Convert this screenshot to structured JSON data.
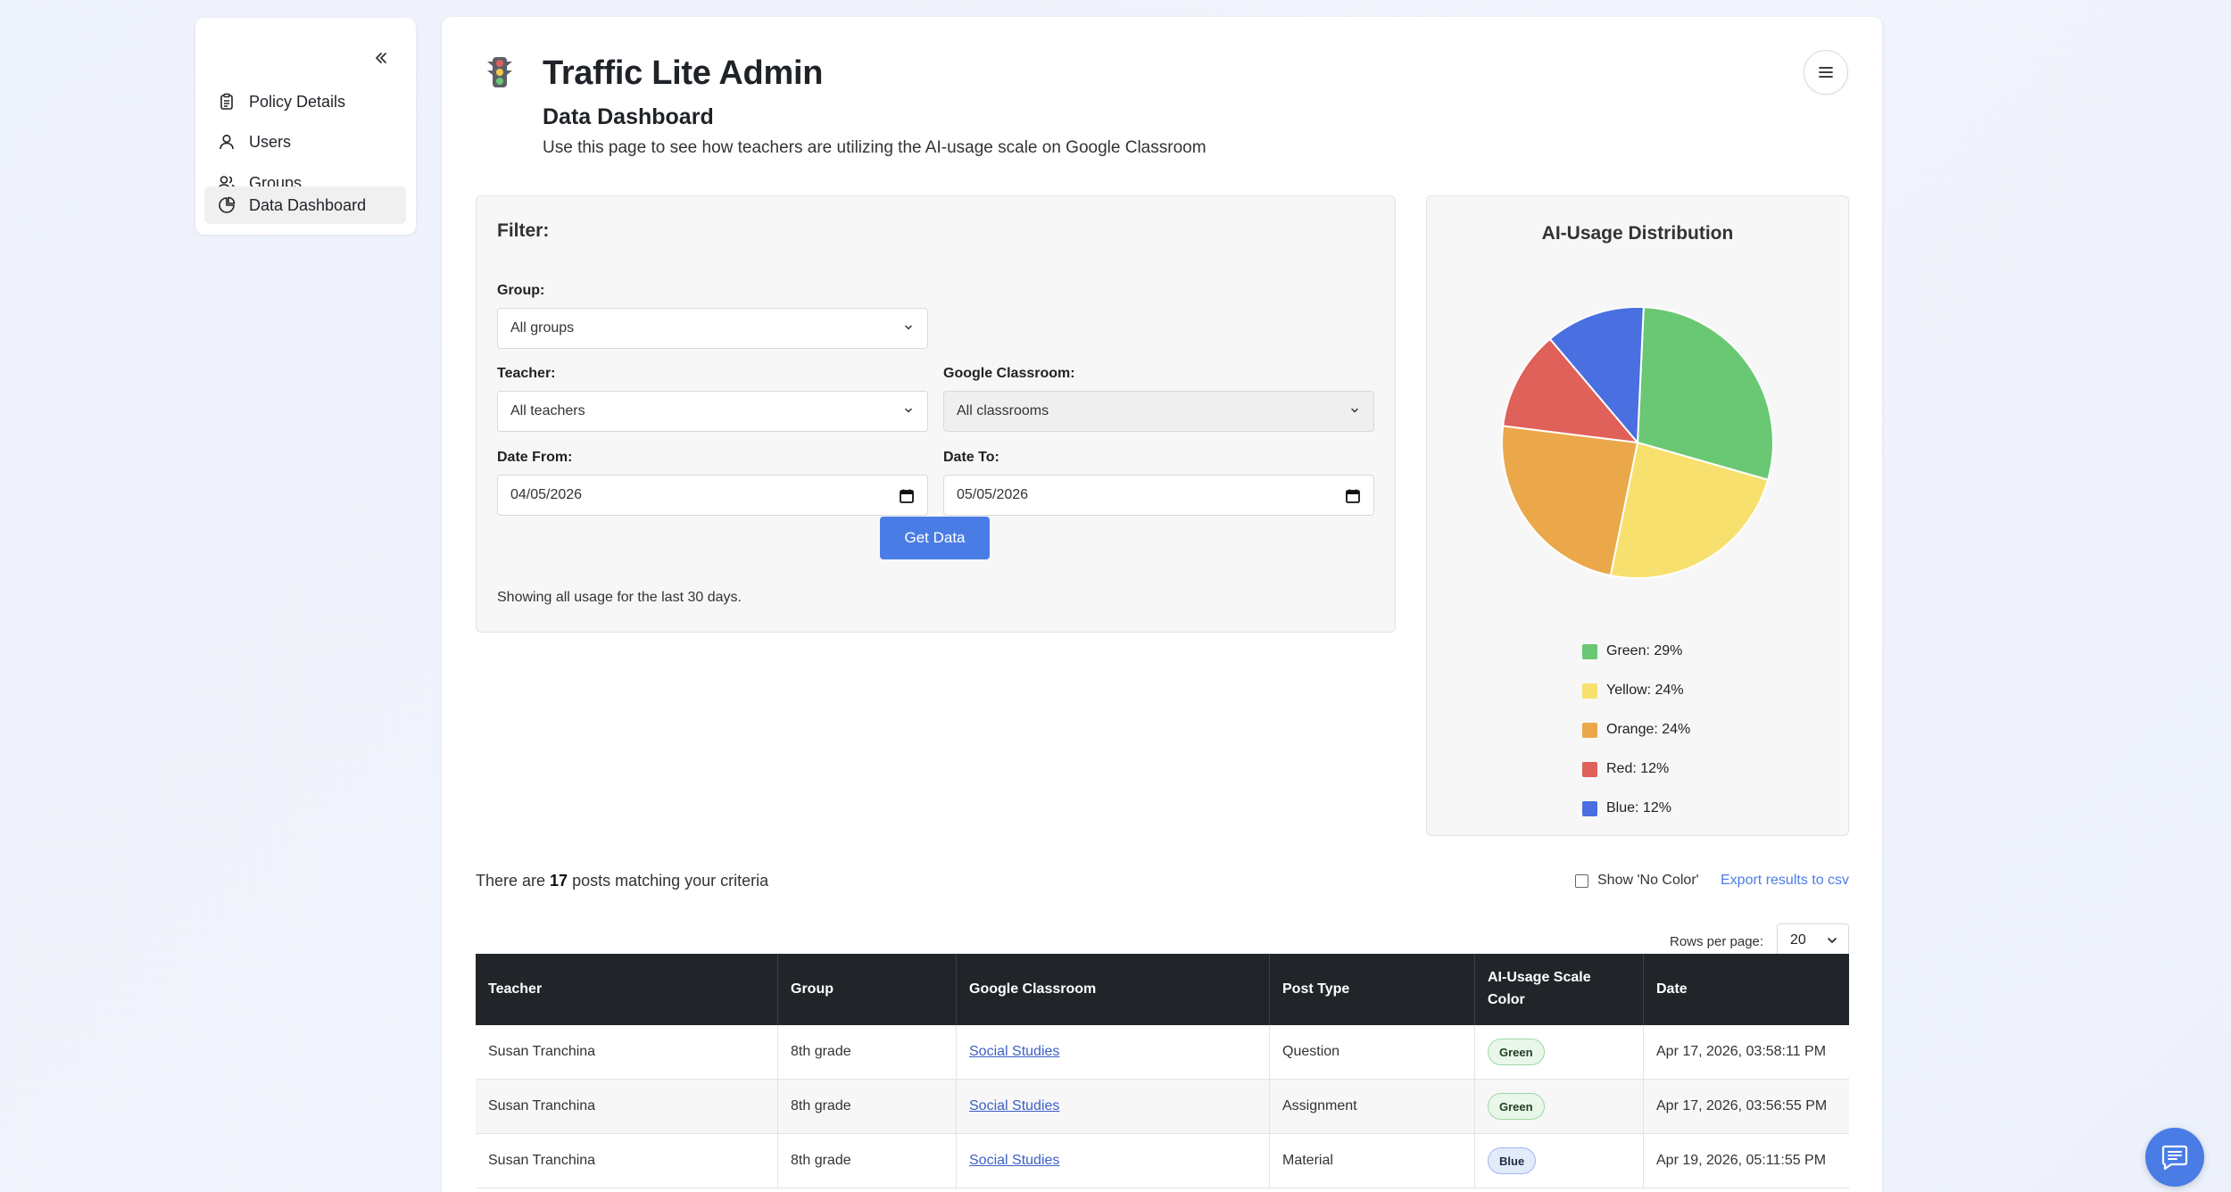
{
  "sidebar": {
    "collapse_icon": "double-chevron-left-icon",
    "items": [
      {
        "label": "Policy Details",
        "icon": "clipboard-icon"
      },
      {
        "label": "Users",
        "icon": "user-icon"
      },
      {
        "label": "Groups",
        "icon": "users-icon"
      },
      {
        "label": "Data Dashboard",
        "icon": "pie-chart-icon",
        "active": true
      }
    ]
  },
  "header": {
    "app_title": "Traffic Lite Admin",
    "page_title": "Data Dashboard",
    "description": "Use this page to see how teachers are utilizing the AI-usage scale on Google Classroom",
    "logo_icon": "traffic-light-icon",
    "menu_icon": "hamburger-icon"
  },
  "filter": {
    "title": "Filter:",
    "group_label": "Group:",
    "group_value": "All groups",
    "teacher_label": "Teacher:",
    "teacher_value": "All teachers",
    "classroom_label": "Google Classroom:",
    "classroom_value": "All classrooms",
    "date_from_label": "Date From:",
    "date_from_value": "04/05/2026",
    "date_to_label": "Date To:",
    "date_to_value": "05/05/2026",
    "button_label": "Get Data",
    "note": "Showing all usage for the last 30 days."
  },
  "chart_data": {
    "type": "pie",
    "title": "AI-Usage Distribution",
    "categories": [
      "Green",
      "Yellow",
      "Orange",
      "Red",
      "Blue"
    ],
    "values": [
      29,
      24,
      24,
      12,
      12
    ],
    "colors": [
      "#6ac874",
      "#f8e06f",
      "#eaa84a",
      "#e0605a",
      "#4a6fe0"
    ],
    "legend_labels": [
      "Green: 29%",
      "Yellow: 24%",
      "Orange: 24%",
      "Red: 12%",
      "Blue: 12%"
    ],
    "legend_position": "bottom"
  },
  "results": {
    "count_prefix": "There are ",
    "count": "17",
    "count_suffix": " posts matching your criteria",
    "show_no_color_label": "Show 'No Color'",
    "export_label": "Export results to csv",
    "rows_per_page_label": "Rows per page:",
    "rows_per_page_value": "20"
  },
  "table": {
    "headers": [
      "Teacher",
      "Group",
      "Google Classroom",
      "Post Type",
      "AI-Usage Scale Color",
      "Date"
    ],
    "rows": [
      {
        "teacher": "Susan Tranchina",
        "group": "8th grade",
        "classroom": "Social Studies",
        "post_type": "Question",
        "color": "Green",
        "date": "Apr 17, 2026, 03:58:11 PM"
      },
      {
        "teacher": "Susan Tranchina",
        "group": "8th grade",
        "classroom": "Social Studies",
        "post_type": "Assignment",
        "color": "Green",
        "date": "Apr 17, 2026, 03:56:55 PM"
      },
      {
        "teacher": "Susan Tranchina",
        "group": "8th grade",
        "classroom": "Social Studies",
        "post_type": "Material",
        "color": "Blue",
        "date": "Apr 19, 2026, 05:11:55 PM"
      }
    ]
  },
  "chat_icon": "chat-icon"
}
